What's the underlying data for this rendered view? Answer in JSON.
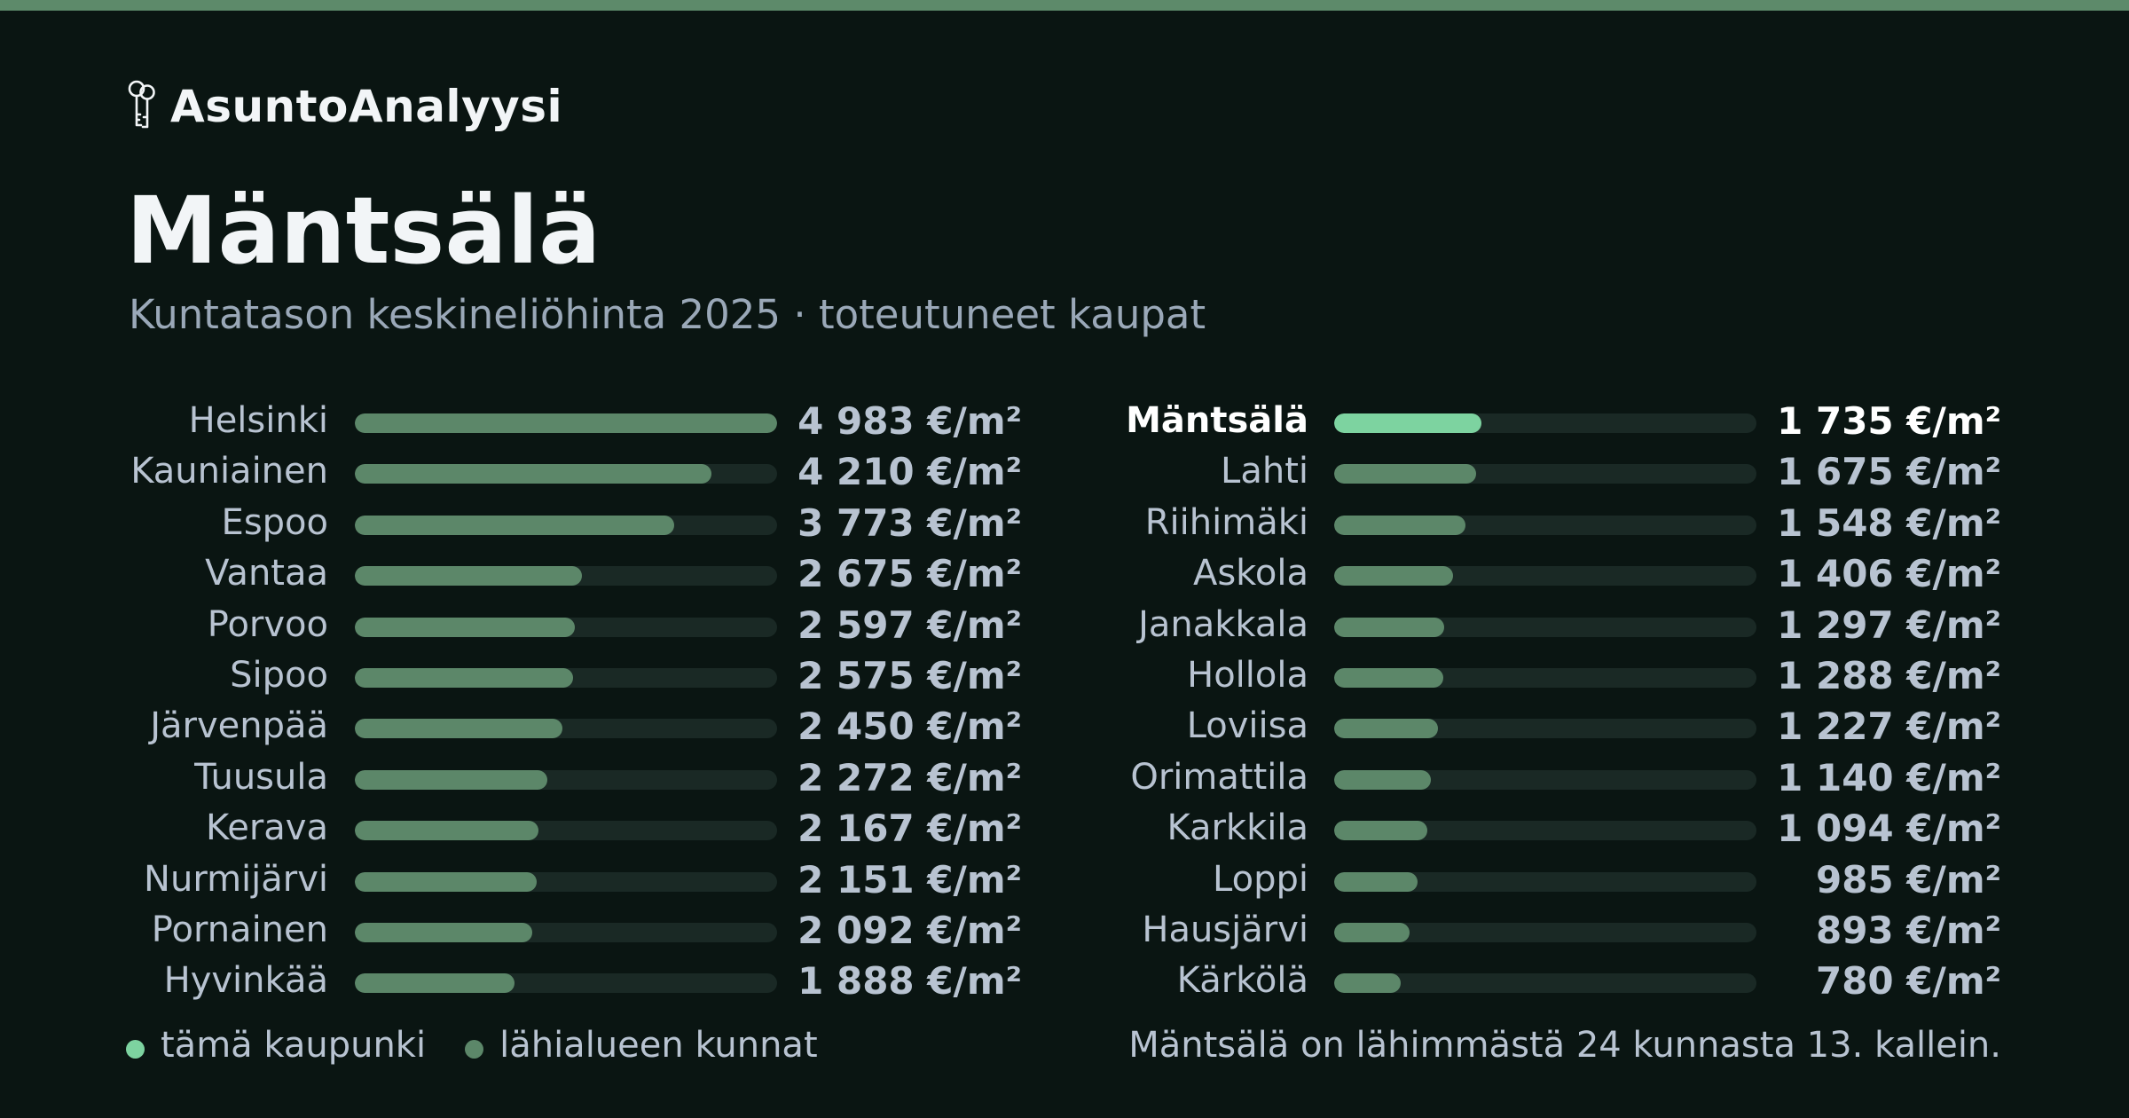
{
  "brand": {
    "name": "AsuntoAnalyysi",
    "icon": "keys-icon"
  },
  "header": {
    "title": "Mäntsälä",
    "subtitle": "Kuntatason keskineliöhinta 2025 · toteutuneet kaupat"
  },
  "colors": {
    "background": "#0a1512",
    "accent_bar": "#5d8a6a",
    "highlight": "#7dd3a0",
    "neighbor": "#5c8769",
    "track": "#1a2925"
  },
  "chart_data": {
    "type": "bar",
    "orientation": "horizontal",
    "unit": "€/m²",
    "xlim": [
      0,
      4983
    ],
    "highlight": "Mäntsälä",
    "columns": [
      [
        {
          "name": "Helsinki",
          "value": 4983,
          "label": "4 983 €/m²"
        },
        {
          "name": "Kauniainen",
          "value": 4210,
          "label": "4 210 €/m²"
        },
        {
          "name": "Espoo",
          "value": 3773,
          "label": "3 773 €/m²"
        },
        {
          "name": "Vantaa",
          "value": 2675,
          "label": "2 675 €/m²"
        },
        {
          "name": "Porvoo",
          "value": 2597,
          "label": "2 597 €/m²"
        },
        {
          "name": "Sipoo",
          "value": 2575,
          "label": "2 575 €/m²"
        },
        {
          "name": "Järvenpää",
          "value": 2450,
          "label": "2 450 €/m²"
        },
        {
          "name": "Tuusula",
          "value": 2272,
          "label": "2 272 €/m²"
        },
        {
          "name": "Kerava",
          "value": 2167,
          "label": "2 167 €/m²"
        },
        {
          "name": "Nurmijärvi",
          "value": 2151,
          "label": "2 151 €/m²"
        },
        {
          "name": "Pornainen",
          "value": 2092,
          "label": "2 092 €/m²"
        },
        {
          "name": "Hyvinkää",
          "value": 1888,
          "label": "1 888 €/m²"
        }
      ],
      [
        {
          "name": "Mäntsälä",
          "value": 1735,
          "label": "1 735 €/m²",
          "current": true
        },
        {
          "name": "Lahti",
          "value": 1675,
          "label": "1 675 €/m²"
        },
        {
          "name": "Riihimäki",
          "value": 1548,
          "label": "1 548 €/m²"
        },
        {
          "name": "Askola",
          "value": 1406,
          "label": "1 406 €/m²"
        },
        {
          "name": "Janakkala",
          "value": 1297,
          "label": "1 297 €/m²"
        },
        {
          "name": "Hollola",
          "value": 1288,
          "label": "1 288 €/m²"
        },
        {
          "name": "Loviisa",
          "value": 1227,
          "label": "1 227 €/m²"
        },
        {
          "name": "Orimattila",
          "value": 1140,
          "label": "1 140 €/m²"
        },
        {
          "name": "Karkkila",
          "value": 1094,
          "label": "1 094 €/m²"
        },
        {
          "name": "Loppi",
          "value": 985,
          "label": "985 €/m²"
        },
        {
          "name": "Hausjärvi",
          "value": 893,
          "label": "893 €/m²"
        },
        {
          "name": "Kärkölä",
          "value": 780,
          "label": "780 €/m²"
        }
      ]
    ]
  },
  "legend": {
    "current_label": "tämä kaupunki",
    "current_color": "#7dd3a0",
    "neighbors_label": "lähialueen kunnat",
    "neighbors_color": "#5c8769"
  },
  "footnote": "Mäntsälä on lähimmästä 24 kunnasta 13. kallein."
}
